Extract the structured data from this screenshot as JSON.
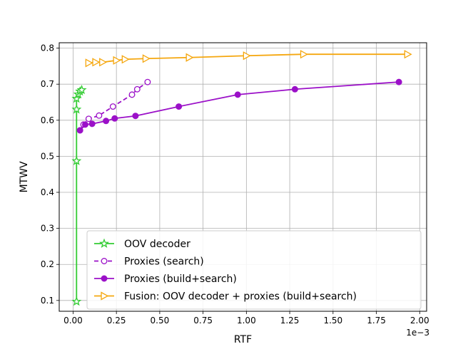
{
  "chart_data": {
    "type": "line",
    "xlabel": "RTF",
    "ylabel": "MTWV",
    "x_offset_text": "1e−3",
    "x_scale_exponent": -3,
    "xlim": [
      -0.08,
      2.04
    ],
    "ylim": [
      0.07,
      0.815
    ],
    "xticks": [
      0.0,
      0.25,
      0.5,
      0.75,
      1.0,
      1.25,
      1.5,
      1.75,
      2.0
    ],
    "xtick_labels": [
      "0.00",
      "0.25",
      "0.50",
      "0.75",
      "1.00",
      "1.25",
      "1.50",
      "1.75",
      "2.00"
    ],
    "yticks": [
      0.1,
      0.2,
      0.3,
      0.4,
      0.5,
      0.6,
      0.7,
      0.8
    ],
    "ytick_labels": [
      "0.1",
      "0.2",
      "0.3",
      "0.4",
      "0.5",
      "0.6",
      "0.7",
      "0.8"
    ],
    "grid": true,
    "legend_position": "lower-right",
    "series": [
      {
        "name": "OOV decoder",
        "color": "#33cc33",
        "line_style": "solid",
        "marker": "star-open",
        "x": [
          0.02,
          0.02,
          0.02,
          0.02,
          0.03,
          0.04,
          0.05
        ],
        "y": [
          0.097,
          0.487,
          0.63,
          0.66,
          0.672,
          0.68,
          0.684
        ]
      },
      {
        "name": "Proxies (search)",
        "color": "#9b10c8",
        "line_style": "dashed",
        "marker": "circle-open",
        "x": [
          0.04,
          0.06,
          0.09,
          0.15,
          0.23,
          0.34,
          0.37,
          0.43
        ],
        "y": [
          0.572,
          0.588,
          0.604,
          0.613,
          0.638,
          0.671,
          0.686,
          0.706
        ]
      },
      {
        "name": "Proxies (build+search)",
        "color": "#9b10c8",
        "line_style": "solid",
        "marker": "circle-filled",
        "x": [
          0.04,
          0.07,
          0.11,
          0.19,
          0.24,
          0.36,
          0.61,
          0.95,
          1.28,
          1.88
        ],
        "y": [
          0.572,
          0.588,
          0.59,
          0.598,
          0.605,
          0.612,
          0.638,
          0.671,
          0.686,
          0.706
        ]
      },
      {
        "name": "Fusion: OOV decoder + proxies (build+search)",
        "color": "#f5a70f",
        "line_style": "solid",
        "marker": "triangle-right-open",
        "x": [
          0.09,
          0.13,
          0.17,
          0.25,
          0.3,
          0.42,
          0.67,
          1.0,
          1.33,
          1.93
        ],
        "y": [
          0.759,
          0.761,
          0.761,
          0.766,
          0.769,
          0.771,
          0.774,
          0.779,
          0.783,
          0.783
        ]
      }
    ]
  }
}
